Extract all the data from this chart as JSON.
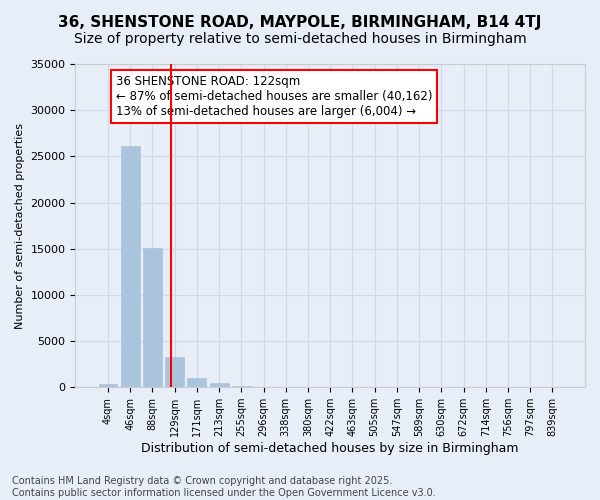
{
  "title": "36, SHENSTONE ROAD, MAYPOLE, BIRMINGHAM, B14 4TJ",
  "subtitle": "Size of property relative to semi-detached houses in Birmingham",
  "xlabel": "Distribution of semi-detached houses by size in Birmingham",
  "ylabel": "Number of semi-detached properties",
  "bin_labels": [
    "4sqm",
    "46sqm",
    "88sqm",
    "129sqm",
    "171sqm",
    "213sqm",
    "255sqm",
    "296sqm",
    "338sqm",
    "380sqm",
    "422sqm",
    "463sqm",
    "505sqm",
    "547sqm",
    "589sqm",
    "630sqm",
    "672sqm",
    "714sqm",
    "756sqm",
    "797sqm",
    "839sqm"
  ],
  "bar_values": [
    400,
    26100,
    15100,
    3300,
    1000,
    500,
    150,
    50,
    10,
    5,
    2,
    1,
    0,
    0,
    0,
    0,
    0,
    0,
    0,
    0,
    0
  ],
  "bar_color": "#aac4de",
  "bar_edgecolor": "#aac4de",
  "grid_color": "#d0d8e8",
  "bg_color": "#e8eef8",
  "vline_color": "red",
  "annotation_text": "36 SHENSTONE ROAD: 122sqm\n← 87% of semi-detached houses are smaller (40,162)\n13% of semi-detached houses are larger (6,004) →",
  "annotation_box_color": "white",
  "annotation_box_edgecolor": "red",
  "ylim": [
    0,
    35000
  ],
  "yticks": [
    0,
    5000,
    10000,
    15000,
    20000,
    25000,
    30000,
    35000
  ],
  "footer_text": "Contains HM Land Registry data © Crown copyright and database right 2025.\nContains public sector information licensed under the Open Government Licence v3.0.",
  "title_fontsize": 11,
  "subtitle_fontsize": 10,
  "annotation_fontsize": 8.5,
  "footer_fontsize": 7
}
